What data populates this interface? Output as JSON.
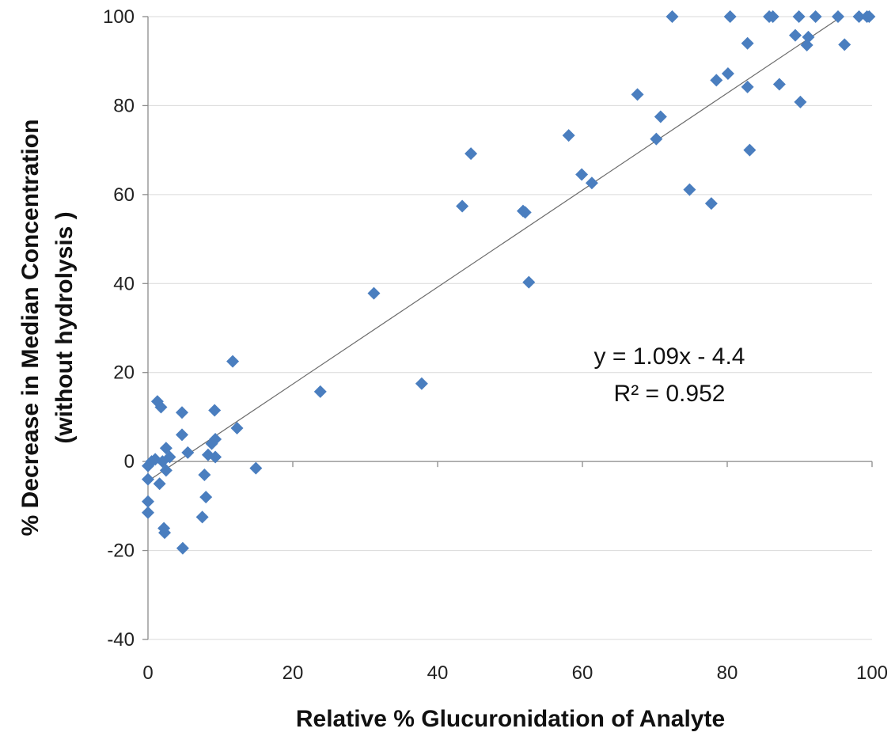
{
  "chart_data": {
    "type": "scatter",
    "title": "",
    "xlabel": "Relative % Glucuronidation of Analyte",
    "ylabel_lines": [
      "% Decrease in Median Concentration",
      "(without  hydrolysis )"
    ],
    "xlim": [
      0,
      100
    ],
    "ylim": [
      -40,
      100
    ],
    "xticks": [
      0,
      20,
      40,
      60,
      80,
      100
    ],
    "yticks": [
      -40,
      -20,
      0,
      20,
      40,
      60,
      80,
      100
    ],
    "grid": {
      "horizontal": true,
      "vertical": false
    },
    "legend": "none",
    "marker": {
      "shape": "diamond",
      "color": "#4a7ebf"
    },
    "trendline": {
      "slope": 1.09,
      "intercept": -4.4,
      "x_range": [
        0,
        96
      ],
      "color": "#6b6b6b"
    },
    "annotations": {
      "equation": "y = 1.09x - 4.4",
      "r_squared": "R² = 0.952"
    },
    "points": [
      [
        0,
        -1
      ],
      [
        0,
        -4
      ],
      [
        0,
        -9
      ],
      [
        0,
        -11.5
      ],
      [
        0.5,
        0
      ],
      [
        1,
        0.5
      ],
      [
        1.3,
        13.5
      ],
      [
        1.6,
        -5
      ],
      [
        1.8,
        12.2
      ],
      [
        2,
        0
      ],
      [
        2.2,
        -15
      ],
      [
        2.3,
        -16
      ],
      [
        2.5,
        3
      ],
      [
        2.5,
        -2
      ],
      [
        3,
        1
      ],
      [
        4.7,
        11
      ],
      [
        4.7,
        6
      ],
      [
        4.8,
        -19.5
      ],
      [
        5.5,
        2
      ],
      [
        7.5,
        -12.5
      ],
      [
        7.8,
        -3
      ],
      [
        8,
        -8
      ],
      [
        8.3,
        1.5
      ],
      [
        8.8,
        4
      ],
      [
        9.2,
        11.5
      ],
      [
        9.3,
        5
      ],
      [
        9.3,
        1
      ],
      [
        11.7,
        22.5
      ],
      [
        12.3,
        7.5
      ],
      [
        14.9,
        -1.5
      ],
      [
        23.8,
        15.7
      ],
      [
        31.2,
        37.8
      ],
      [
        37.8,
        17.5
      ],
      [
        43.4,
        57.4
      ],
      [
        44.6,
        69.2
      ],
      [
        51.8,
        56.3
      ],
      [
        52.1,
        56
      ],
      [
        52.6,
        40.3
      ],
      [
        58.1,
        73.3
      ],
      [
        59.9,
        64.5
      ],
      [
        61.3,
        62.6
      ],
      [
        67.6,
        82.5
      ],
      [
        70.2,
        72.5
      ],
      [
        70.8,
        77.5
      ],
      [
        72.4,
        100
      ],
      [
        74.8,
        61.1
      ],
      [
        77.8,
        58
      ],
      [
        78.5,
        85.7
      ],
      [
        80.1,
        87.2
      ],
      [
        80.4,
        100
      ],
      [
        82.8,
        84.2
      ],
      [
        82.8,
        94
      ],
      [
        83.1,
        70
      ],
      [
        85.8,
        100
      ],
      [
        86.3,
        100
      ],
      [
        87.2,
        84.8
      ],
      [
        89.4,
        95.8
      ],
      [
        89.9,
        100
      ],
      [
        90.1,
        80.8
      ],
      [
        91,
        93.6
      ],
      [
        91.2,
        95.4
      ],
      [
        92.2,
        100
      ],
      [
        95.3,
        100
      ],
      [
        96.2,
        93.7
      ],
      [
        98.2,
        100
      ],
      [
        99.3,
        100
      ],
      [
        99.6,
        100
      ]
    ]
  }
}
